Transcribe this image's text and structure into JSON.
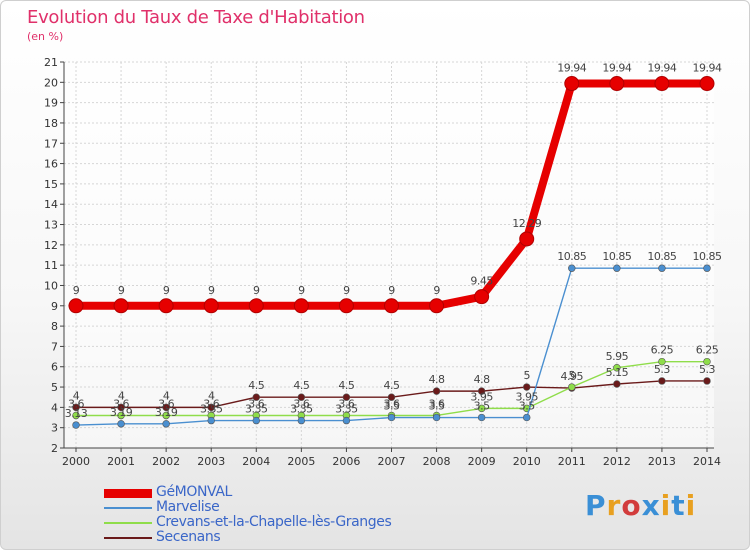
{
  "header": {
    "title": "Evolution du Taux de Taxe d'Habitation",
    "unit": "(en %)"
  },
  "brand": {
    "text": "Proxiti",
    "letter_colors": [
      "#3a8fd6",
      "#e8a020",
      "#d23c3c",
      "#3a8fd6",
      "#e8a020",
      "#3a8fd6",
      "#e8a020"
    ]
  },
  "chart_data": {
    "type": "line",
    "title": "Evolution du Taux de Taxe d'Habitation",
    "ylabel": "(en %)",
    "xlabel": "",
    "x": [
      2000,
      2001,
      2002,
      2003,
      2004,
      2005,
      2006,
      2007,
      2008,
      2009,
      2010,
      2011,
      2012,
      2013,
      2014
    ],
    "ylim": [
      2,
      21
    ],
    "yticks": [
      2,
      3,
      4,
      5,
      6,
      7,
      8,
      9,
      10,
      11,
      12,
      13,
      14,
      15,
      16,
      17,
      18,
      19,
      20,
      21
    ],
    "grid": true,
    "legend_position": "bottom-left",
    "series": [
      {
        "name": "GéMONVAL",
        "color": "#e60000",
        "values": [
          9,
          9,
          9,
          9,
          9,
          9,
          9,
          9,
          9,
          9.45,
          12.29,
          19.94,
          19.94,
          19.94,
          19.94
        ],
        "labels": [
          "9",
          "9",
          "9",
          "9",
          "9",
          "9",
          "9",
          "9",
          "9",
          "9.45",
          "12.29",
          "19.94",
          "19.94",
          "19.94",
          "19.94"
        ]
      },
      {
        "name": "Marvelise",
        "color": "#4a8fd0",
        "values": [
          3.13,
          3.19,
          3.19,
          3.35,
          3.35,
          3.35,
          3.35,
          3.5,
          3.5,
          3.5,
          3.5,
          10.85,
          10.85,
          10.85,
          10.85
        ],
        "labels": [
          "3.13",
          "3.19",
          "3.19",
          "3.35",
          "3.35",
          "3.35",
          "3.35",
          "3.5",
          "3.5",
          "3.5",
          "3.5",
          "10.85",
          "10.85",
          "10.85",
          "10.85"
        ]
      },
      {
        "name": "Crevans-et-la-Chapelle-lès-Granges",
        "color": "#8fdd4a",
        "values": [
          3.6,
          3.6,
          3.6,
          3.6,
          3.6,
          3.6,
          3.6,
          3.6,
          3.6,
          3.95,
          3.95,
          5,
          5.95,
          6.25,
          6.25
        ],
        "labels": [
          "3.6",
          "3.6",
          "3.6",
          "3.6",
          "3.6",
          "3.6",
          "3.6",
          "3.6",
          "3.6",
          "3.95",
          "3.95",
          "5",
          "5.95",
          "6.25",
          "6.25"
        ]
      },
      {
        "name": "Secenans",
        "color": "#6a1a1a",
        "values": [
          4,
          4,
          4,
          4,
          4.5,
          4.5,
          4.5,
          4.5,
          4.8,
          4.8,
          5,
          4.95,
          5.15,
          5.3,
          5.3
        ],
        "labels": [
          "4",
          "4",
          "4",
          "4",
          "4.5",
          "4.5",
          "4.5",
          "4.5",
          "4.8",
          "4.8",
          "5",
          "4.95",
          "5.15",
          "5.3",
          "5.3"
        ]
      }
    ]
  }
}
